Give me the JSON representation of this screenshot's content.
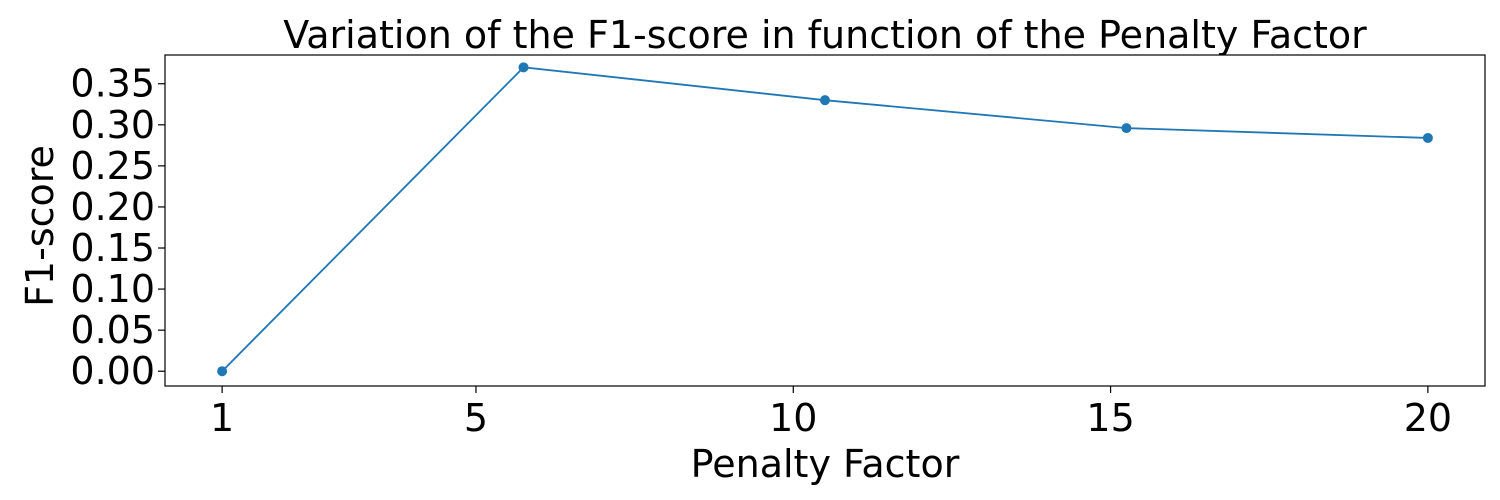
{
  "chart_data": {
    "type": "line",
    "title": "Variation of the F1-score in function of the Penalty Factor",
    "xlabel": "Penalty Factor",
    "ylabel": "F1-score",
    "x_ticks": [
      1,
      5,
      10,
      15,
      20
    ],
    "y_ticks": [
      "0.00",
      "0.05",
      "0.10",
      "0.15",
      "0.20",
      "0.25",
      "0.30",
      "0.35"
    ],
    "xlim": [
      0.1,
      20.9
    ],
    "ylim": [
      -0.018,
      0.385
    ],
    "grid": false,
    "series": [
      {
        "color": "#1f77b4",
        "marker": "circle",
        "x": [
          1,
          5.75,
          10.5,
          15.25,
          20
        ],
        "y": [
          0.0,
          0.37,
          0.33,
          0.296,
          0.284
        ]
      }
    ]
  }
}
